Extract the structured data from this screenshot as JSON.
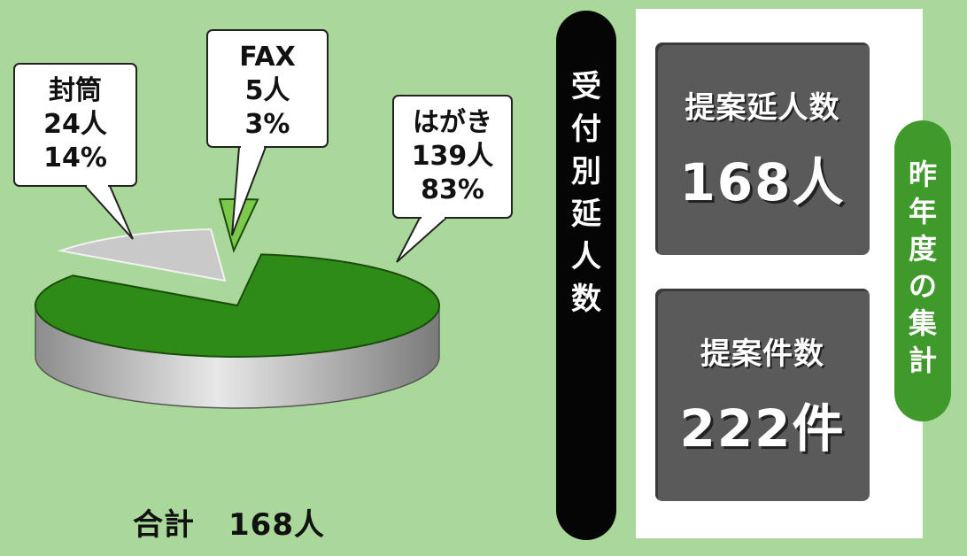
{
  "chart_data": {
    "type": "pie",
    "title": "",
    "total_label": "合計",
    "total_value": "168人",
    "slices": [
      {
        "name": "封筒",
        "count": "24人",
        "percent": "14%",
        "value": 14,
        "color": "#c9c9c9"
      },
      {
        "name": "FAX",
        "count": "5人",
        "percent": "3%",
        "value": 3,
        "color": "#7bc84a"
      },
      {
        "name": "はがき",
        "count": "139人",
        "percent": "83%",
        "value": 83,
        "color": "#2e8b17"
      }
    ]
  },
  "side_bar": {
    "label": [
      "受",
      "付",
      "別",
      "延",
      "人",
      "数"
    ]
  },
  "stats": [
    {
      "label": "提案延人数",
      "value": "168人"
    },
    {
      "label": "提案件数",
      "value": "222件"
    }
  ],
  "year_tag": {
    "label": [
      "昨",
      "年",
      "度",
      "の",
      "集",
      "計"
    ]
  },
  "colors": {
    "background": "#a9d89a",
    "dark_bar": "#050505",
    "stat_box": "#5a5a5a",
    "tag_green": "#3f9a2b"
  }
}
